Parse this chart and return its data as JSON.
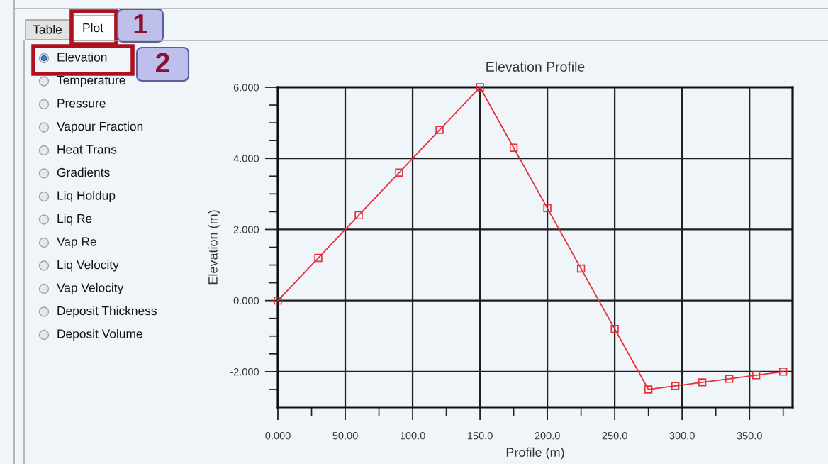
{
  "chart_data": [
    {
      "type": "other",
      "annotations": [
        "Table",
        "Plot",
        "1",
        "2"
      ],
      "categories": [
        "Elevation",
        "Temperature",
        "Pressure",
        "Vapour Fraction",
        "Heat Trans",
        "Gradients",
        "Liq Holdup",
        "Liq Re",
        "Vap Re",
        "Liq Velocity",
        "Vap Velocity",
        "Deposit Thickness",
        "Deposit Volume"
      ]
    },
    {
      "type": "line",
      "title": "Elevation Profile",
      "xlabel": "Profile (m)",
      "ylabel": "Elevation (m)",
      "x": [
        0,
        30,
        60,
        90,
        120,
        150,
        175,
        200,
        225,
        250,
        275,
        295,
        315,
        335,
        355,
        375
      ],
      "values": [
        0,
        1.2,
        2.4,
        3.6,
        4.8,
        6,
        4.3,
        2.6,
        0.9,
        -0.8,
        -2.5,
        -2.4,
        -2.3,
        -2.2,
        -2.1,
        -2
      ],
      "color": "#e8303c",
      "marker": "square",
      "line_style": "solid",
      "xlim": [
        0,
        382
      ],
      "ylim": [
        -3,
        6
      ],
      "xticks": [
        {
          "value": 0,
          "label": "0.000"
        },
        {
          "value": 25,
          "label": null
        },
        {
          "value": 50,
          "label": "50.00"
        },
        {
          "value": 75,
          "label": null
        },
        {
          "value": 100,
          "label": "100.0"
        },
        {
          "value": 125,
          "label": null
        },
        {
          "value": 150,
          "label": "150.0"
        },
        {
          "value": 175,
          "label": null
        },
        {
          "value": 200,
          "label": "200.0"
        },
        {
          "value": 225,
          "label": null
        },
        {
          "value": 250,
          "label": "250.0"
        },
        {
          "value": 275,
          "label": null
        },
        {
          "value": 300,
          "label": "300.0"
        },
        {
          "value": 325,
          "label": null
        },
        {
          "value": 350,
          "label": "350.0"
        },
        {
          "value": 375,
          "label": null
        }
      ],
      "yticks": [
        {
          "value": -2.5,
          "label": null
        },
        {
          "value": -2,
          "label": "-2.000"
        },
        {
          "value": -1.5,
          "label": null
        },
        {
          "value": -1,
          "label": null
        },
        {
          "value": -0.5,
          "label": null
        },
        {
          "value": 0,
          "label": "0.000"
        },
        {
          "value": 0.5,
          "label": null
        },
        {
          "value": 1,
          "label": null
        },
        {
          "value": 1.5,
          "label": null
        },
        {
          "value": 2,
          "label": "2.000"
        },
        {
          "value": 2.5,
          "label": null
        },
        {
          "value": 3,
          "label": null
        },
        {
          "value": 3.5,
          "label": null
        },
        {
          "value": 4,
          "label": "4.000"
        },
        {
          "value": 4.5,
          "label": null
        },
        {
          "value": 5,
          "label": null
        },
        {
          "value": 5.5,
          "label": null
        },
        {
          "value": 6,
          "label": "6.000"
        }
      ],
      "grid": true
    }
  ]
}
